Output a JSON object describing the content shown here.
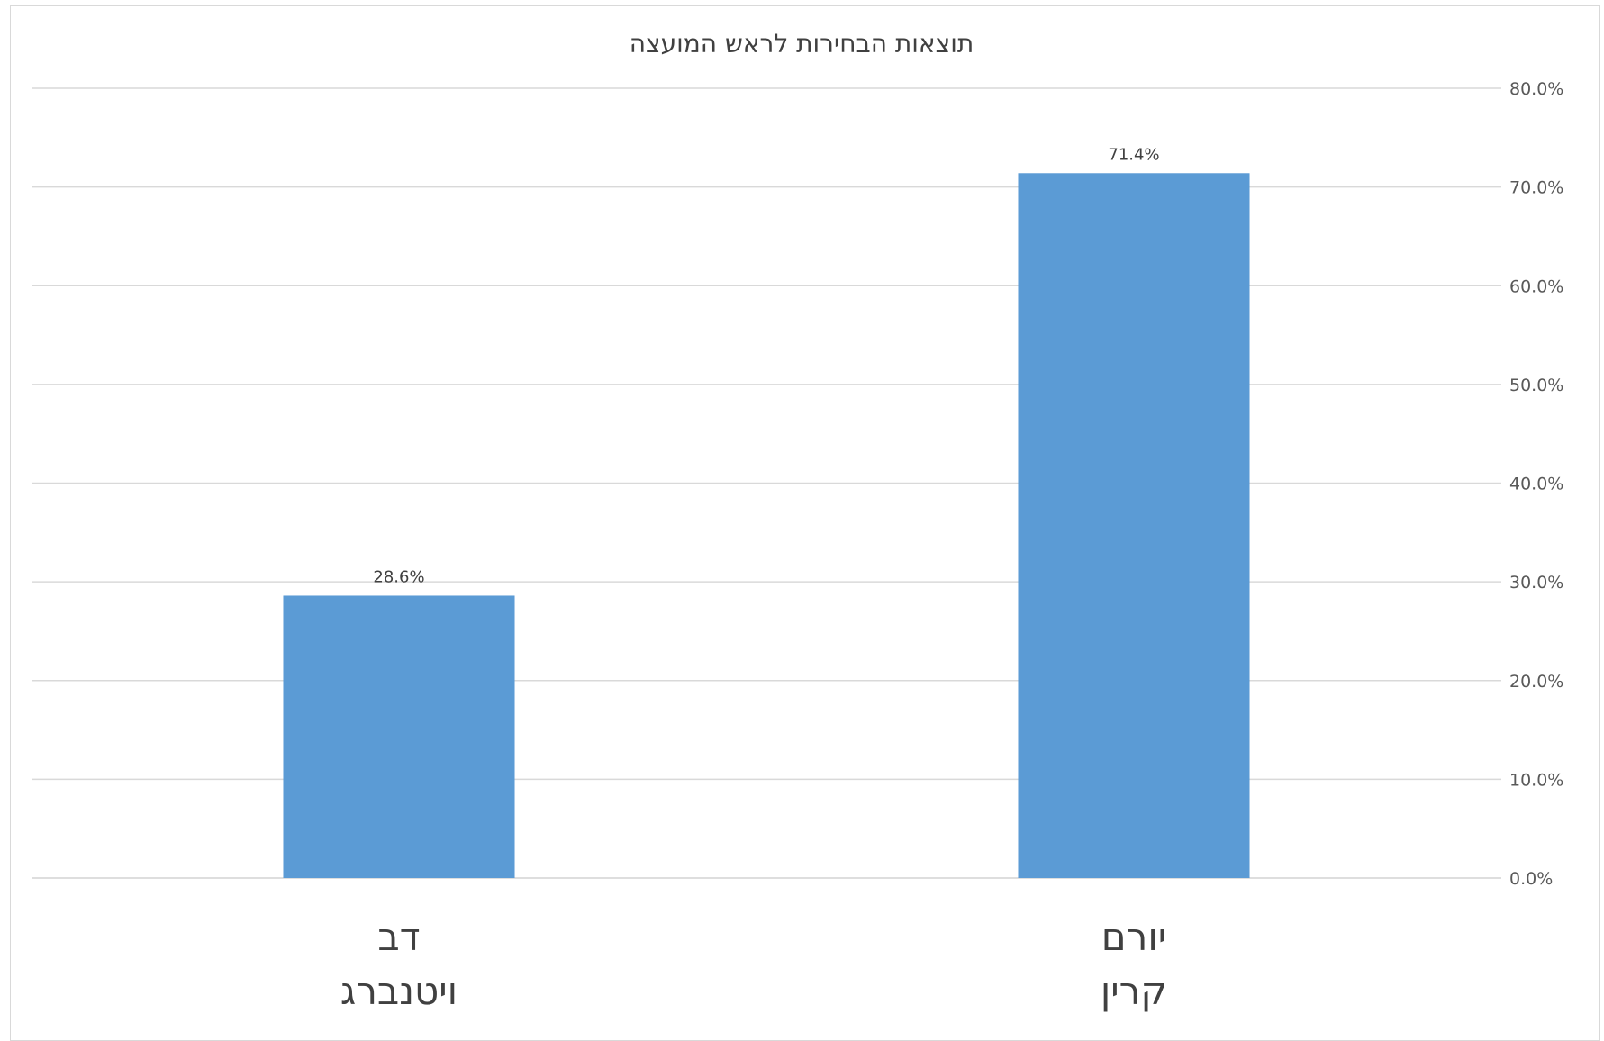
{
  "chart_data": {
    "type": "bar",
    "title": "תוצאות הבחירות לראש המועצה",
    "categories": [
      [
        "דב",
        "ויטנברג"
      ],
      [
        "יורם",
        "קרין"
      ]
    ],
    "values": [
      28.6,
      71.4
    ],
    "data_labels": [
      "28.6%",
      "71.4%"
    ],
    "ylim": [
      0,
      80
    ],
    "yticks": [
      0,
      10,
      20,
      30,
      40,
      50,
      60,
      70,
      80
    ],
    "ytick_labels": [
      "0.0%",
      "10.0%",
      "20.0%",
      "30.0%",
      "40.0%",
      "50.0%",
      "60.0%",
      "70.0%",
      "80.0%"
    ],
    "y_axis_side": "right",
    "grid": true,
    "legend": "none",
    "bar_color": "#5b9bd5",
    "grid_color": "#d9d9d9"
  }
}
